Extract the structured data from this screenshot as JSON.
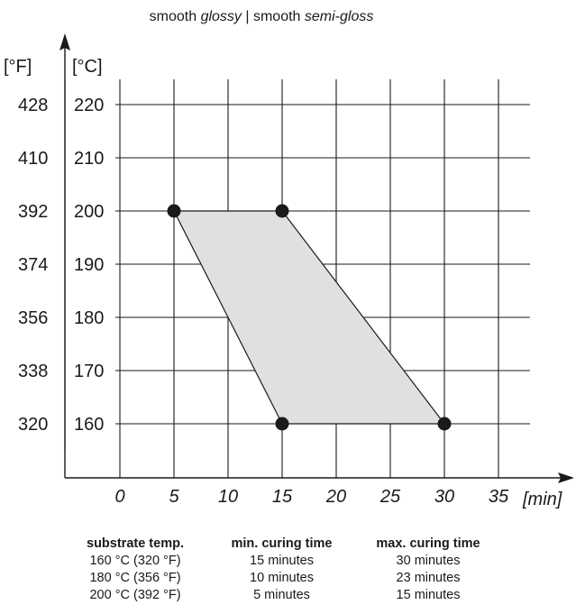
{
  "chart_data": {
    "type": "area",
    "title_parts": [
      "smooth ",
      "glossy",
      " | smooth ",
      "semi-gloss"
    ],
    "x_unit": "[min]",
    "y_unit_c": "[°C]",
    "y_unit_f": "[°F]",
    "x_ticks": [
      0,
      5,
      10,
      15,
      20,
      25,
      30,
      35
    ],
    "xlim": [
      -5,
      38
    ],
    "y_ticks_c": [
      160,
      170,
      180,
      190,
      200,
      210,
      220
    ],
    "y_ticks_f": [
      320,
      338,
      356,
      374,
      392,
      410,
      428
    ],
    "ylim": [
      150,
      225
    ],
    "grid": true,
    "series": [
      {
        "points": [
          [
            5,
            200
          ],
          [
            15,
            200
          ],
          [
            30,
            160
          ],
          [
            15,
            160
          ]
        ],
        "fill": "#e0e0e0"
      }
    ]
  },
  "table": {
    "headers": [
      "substrate temp.",
      "min. curing time",
      "max. curing time"
    ],
    "rows": [
      [
        "160 °C (320 °F)",
        "15 minutes",
        "30 minutes"
      ],
      [
        "180 °C (356 °F)",
        "10 minutes",
        "23 minutes"
      ],
      [
        "200 °C (392 °F)",
        "5 minutes",
        "15 minutes"
      ]
    ]
  }
}
